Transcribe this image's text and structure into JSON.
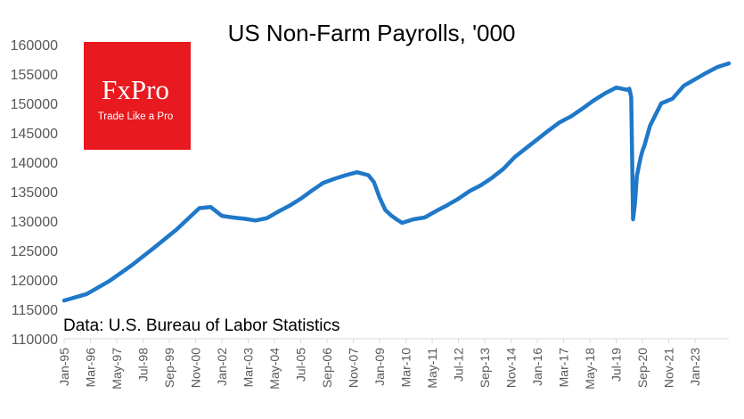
{
  "chart_data": {
    "type": "line",
    "title": "US Non-Farm Payrolls, '000",
    "xlabel": "",
    "ylabel": "",
    "ylim": [
      110000,
      160000
    ],
    "y_ticks": [
      110000,
      115000,
      120000,
      125000,
      130000,
      135000,
      140000,
      145000,
      150000,
      155000,
      160000
    ],
    "x_range": [
      "Jan-95",
      "Jul-24"
    ],
    "x_tick_labels": [
      "Jan-95",
      "Mar-96",
      "May-97",
      "Jul-98",
      "Sep-99",
      "Nov-00",
      "Jan-02",
      "Mar-03",
      "May-04",
      "Jul-05",
      "Sep-06",
      "Nov-07",
      "Jan-09",
      "Mar-10",
      "May-11",
      "Jul-12",
      "Sep-13",
      "Nov-14",
      "Jan-16",
      "Mar-17",
      "May-18",
      "Jul-19",
      "Sep-20",
      "Nov-21",
      "Jan-23"
    ],
    "grid": false,
    "line_color": "#1f78c8",
    "series": [
      {
        "name": "",
        "x": [
          "Jan-95",
          "Jan-96",
          "Jan-97",
          "Jan-98",
          "Jan-99",
          "Jan-00",
          "Jan-01",
          "Jul-01",
          "Jan-02",
          "Jul-02",
          "Jan-03",
          "Jul-03",
          "Jan-04",
          "Jul-04",
          "Jan-05",
          "Jul-05",
          "Jan-06",
          "Jul-06",
          "Jan-07",
          "Jul-07",
          "Jan-08",
          "Jul-08",
          "Oct-08",
          "Jan-09",
          "Apr-09",
          "Jul-09",
          "Oct-09",
          "Jan-10",
          "Jul-10",
          "Jan-11",
          "Jul-11",
          "Jan-12",
          "Jul-12",
          "Jan-13",
          "Jul-13",
          "Jan-14",
          "Jul-14",
          "Jan-15",
          "Jul-15",
          "Jan-16",
          "Jul-16",
          "Jan-17",
          "Jul-17",
          "Jan-18",
          "Jul-18",
          "Jan-19",
          "Jul-19",
          "Jan-20",
          "Feb-20",
          "Mar-20",
          "Apr-20",
          "May-20",
          "Jun-20",
          "Jul-20",
          "Aug-20",
          "Sep-20",
          "Oct-20",
          "Jan-21",
          "Jul-21",
          "Jan-22",
          "Jul-22",
          "Jan-23",
          "Jul-23",
          "Jan-24",
          "Jul-24"
        ],
        "y": [
          116500,
          117600,
          119800,
          122500,
          125500,
          128600,
          132200,
          132400,
          130900,
          130600,
          130400,
          130100,
          130500,
          131600,
          132600,
          133800,
          135200,
          136500,
          137200,
          137800,
          138300,
          137800,
          136600,
          134000,
          131900,
          131000,
          130300,
          129700,
          130300,
          130600,
          131700,
          132700,
          133800,
          135100,
          136100,
          137400,
          138900,
          140900,
          142400,
          143900,
          145400,
          146800,
          147800,
          149100,
          150500,
          151700,
          152700,
          152300,
          152500,
          151100,
          130300,
          133000,
          137600,
          139200,
          140800,
          142000,
          142800,
          146200,
          150000,
          150800,
          153000,
          154100,
          155200,
          156200,
          156800
        ]
      }
    ],
    "annotations": [
      "Data: U.S. Bureau of Labor Statistics"
    ]
  },
  "logo": {
    "name": "FxPro",
    "tagline": "Trade Like a Pro",
    "bg_color": "#e8191f"
  }
}
